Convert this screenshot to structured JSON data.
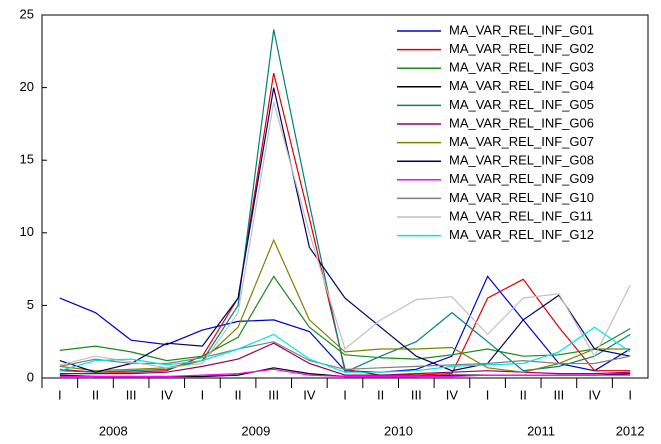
{
  "chart_data": {
    "type": "line",
    "categories": [
      "I",
      "II",
      "III",
      "IV",
      "I",
      "II",
      "III",
      "IV",
      "I",
      "II",
      "III",
      "IV",
      "I",
      "II",
      "III",
      "IV",
      "I"
    ],
    "year_labels": [
      "2008",
      "2009",
      "2010",
      "2011",
      "2012"
    ],
    "ylim": [
      0,
      25
    ],
    "yticks": [
      0,
      5,
      10,
      15,
      20,
      25
    ],
    "grid": false,
    "legend": "upper-right",
    "series": [
      {
        "name": "MA_VAR_REL_INF_G01",
        "color": "#0000cc",
        "values": [
          5.5,
          4.5,
          2.6,
          2.3,
          3.3,
          3.9,
          4.0,
          3.2,
          0.5,
          0.4,
          0.6,
          1.5,
          7.0,
          4.0,
          1.0,
          0.5,
          2.0
        ]
      },
      {
        "name": "MA_VAR_REL_INF_G02",
        "color": "#e00000",
        "values": [
          0.6,
          0.4,
          0.4,
          0.5,
          1.5,
          5.5,
          21.0,
          11.0,
          0.6,
          0.2,
          0.2,
          0.3,
          5.5,
          6.8,
          3.5,
          0.5,
          0.5
        ]
      },
      {
        "name": "MA_VAR_REL_INF_G03",
        "color": "#1a8a1a",
        "values": [
          1.9,
          2.2,
          1.8,
          1.2,
          1.5,
          2.8,
          7.0,
          3.5,
          1.6,
          1.4,
          1.3,
          1.6,
          2.0,
          1.5,
          1.6,
          2.0,
          3.4
        ]
      },
      {
        "name": "MA_VAR_REL_INF_G04",
        "color": "#000000",
        "values": [
          0.2,
          0.1,
          0.1,
          0.1,
          0.1,
          0.2,
          0.7,
          0.3,
          0.1,
          0.1,
          0.1,
          0.2,
          0.2,
          0.2,
          0.2,
          0.2,
          0.3
        ]
      },
      {
        "name": "MA_VAR_REL_INF_G05",
        "color": "#008080",
        "values": [
          0.5,
          0.4,
          0.5,
          0.6,
          1.2,
          5.0,
          24.0,
          12.0,
          0.4,
          1.5,
          2.5,
          4.5,
          2.5,
          0.5,
          0.8,
          1.5,
          3.0
        ]
      },
      {
        "name": "MA_VAR_REL_INF_G06",
        "color": "#990066",
        "values": [
          0.3,
          0.3,
          0.3,
          0.4,
          0.8,
          1.3,
          2.4,
          1.0,
          0.2,
          0.2,
          0.3,
          0.4,
          0.5,
          0.4,
          0.3,
          0.3,
          0.4
        ]
      },
      {
        "name": "MA_VAR_REL_INF_G07",
        "color": "#808000",
        "values": [
          0.8,
          0.5,
          0.6,
          0.7,
          1.2,
          3.5,
          9.5,
          4.0,
          1.8,
          2.0,
          2.0,
          2.1,
          0.7,
          0.4,
          1.0,
          2.0,
          2.0
        ]
      },
      {
        "name": "MA_VAR_REL_INF_G08",
        "color": "#000066",
        "values": [
          1.2,
          0.4,
          1.0,
          2.4,
          2.2,
          5.5,
          20.0,
          9.0,
          5.5,
          3.5,
          1.5,
          0.5,
          1.0,
          4.0,
          5.7,
          2.0,
          1.5
        ]
      },
      {
        "name": "MA_VAR_REL_INF_G09",
        "color": "#ff00ff",
        "values": [
          0.1,
          0.1,
          0.1,
          0.1,
          0.2,
          0.3,
          0.6,
          0.2,
          0.1,
          0.1,
          0.1,
          0.1,
          0.2,
          0.2,
          0.2,
          0.2,
          0.2
        ]
      },
      {
        "name": "MA_VAR_REL_INF_G10",
        "color": "#808080",
        "values": [
          0.8,
          1.3,
          1.0,
          1.0,
          1.4,
          2.0,
          2.5,
          1.2,
          0.6,
          0.7,
          0.8,
          0.9,
          1.0,
          1.2,
          1.0,
          1.0,
          1.5
        ]
      },
      {
        "name": "MA_VAR_REL_INF_G11",
        "color": "#c0c0c0",
        "values": [
          0.9,
          1.5,
          1.1,
          0.7,
          1.0,
          4.5,
          19.0,
          10.0,
          2.0,
          4.0,
          5.4,
          5.6,
          3.0,
          5.5,
          5.8,
          1.5,
          6.4
        ]
      },
      {
        "name": "MA_VAR_REL_INF_G12",
        "color": "#00e5e5",
        "values": [
          0.5,
          1.2,
          1.3,
          0.9,
          1.2,
          2.0,
          3.0,
          1.3,
          0.4,
          0.4,
          0.5,
          0.8,
          0.9,
          1.0,
          1.8,
          3.5,
          1.8
        ]
      }
    ]
  }
}
